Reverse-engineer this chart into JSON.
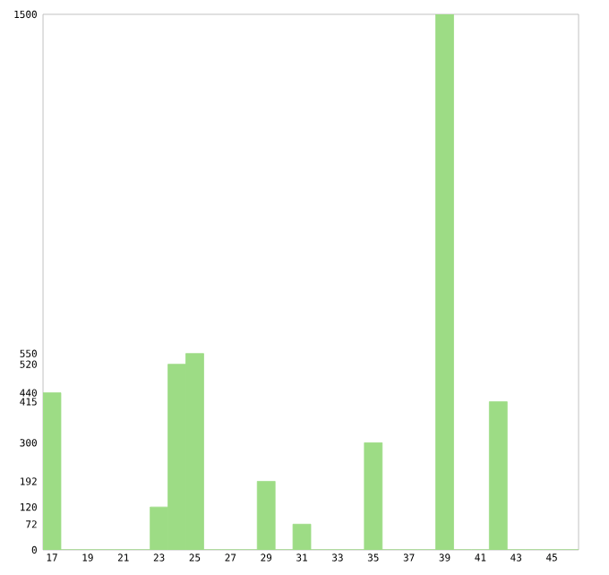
{
  "chart_data": {
    "type": "bar",
    "categories": [
      "17",
      null,
      "19",
      null,
      "21",
      null,
      "23",
      null,
      "25",
      null,
      "27",
      null,
      "29",
      null,
      "31",
      null,
      "33",
      null,
      "35",
      null,
      "37",
      null,
      "39",
      null,
      "41",
      null,
      "43",
      null,
      "45",
      null
    ],
    "values": [
      440,
      0,
      0,
      0,
      0,
      0,
      120,
      520,
      550,
      0,
      0,
      0,
      192,
      0,
      72,
      0,
      0,
      0,
      300,
      0,
      0,
      0,
      1500,
      0,
      0,
      415,
      0,
      0,
      0,
      0
    ],
    "color": "#9ddc85",
    "ylim": [
      0,
      1500
    ],
    "yticks": [
      0,
      72,
      120,
      192,
      300,
      415,
      440,
      520,
      550,
      1500
    ],
    "grid": false
  }
}
